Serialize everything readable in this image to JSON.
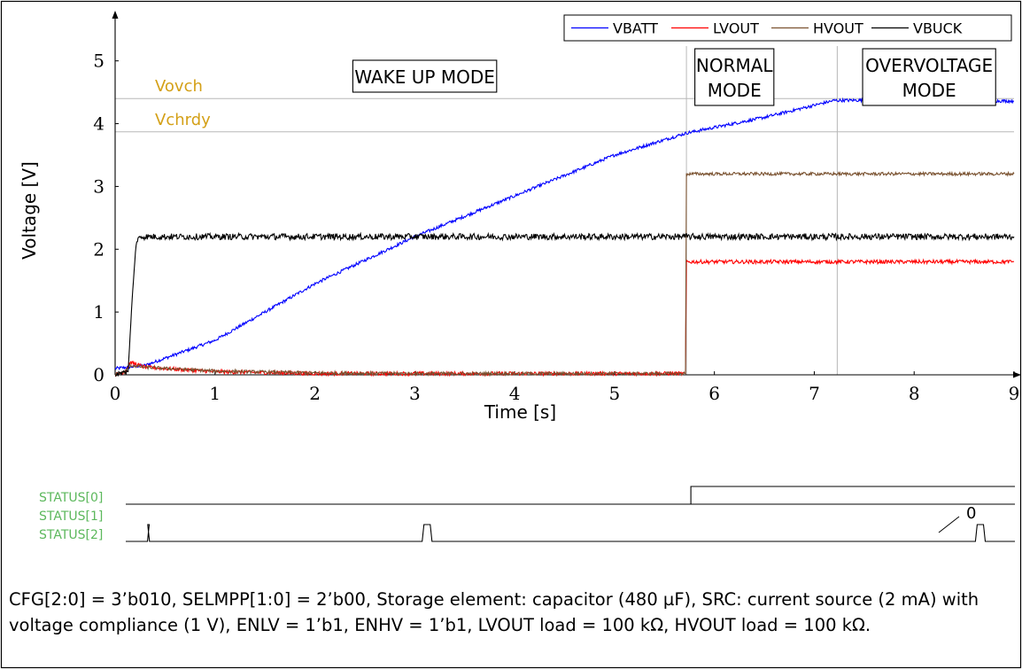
{
  "chart_data": {
    "type": "line",
    "xlabel": "Time [s]",
    "ylabel": "Voltage [V]",
    "xlim": [
      0,
      9
    ],
    "ylim": [
      0,
      5.8
    ],
    "xticks": [
      0,
      1,
      2,
      3,
      4,
      5,
      6,
      7,
      8,
      9
    ],
    "yticks": [
      0,
      1,
      2,
      3,
      4,
      5
    ],
    "grid": false,
    "legend_position": "top-right",
    "series": [
      {
        "name": "VBATT",
        "color": "#0000ff",
        "x": [
          0,
          0.3,
          1,
          2,
          3,
          4,
          5,
          5.72,
          6.5,
          7.2,
          8,
          9
        ],
        "y": [
          0.1,
          0.15,
          0.55,
          1.45,
          2.2,
          2.85,
          3.5,
          3.85,
          4.1,
          4.37,
          4.38,
          4.36
        ]
      },
      {
        "name": "LVOUT",
        "color": "#ff0000",
        "x": [
          0,
          0.1,
          0.15,
          0.3,
          1,
          2,
          3,
          5.71,
          5.72,
          6,
          7,
          8,
          9
        ],
        "y": [
          0,
          0.05,
          0.2,
          0.12,
          0.05,
          0.02,
          0.02,
          0.02,
          1.8,
          1.8,
          1.8,
          1.8,
          1.8
        ]
      },
      {
        "name": "HVOUT",
        "color": "#7a5230",
        "x": [
          0,
          0.1,
          0.15,
          0.3,
          1,
          2,
          3,
          5.71,
          5.72,
          6,
          7,
          8,
          9
        ],
        "y": [
          0,
          0.05,
          0.15,
          0.12,
          0.06,
          0.03,
          0.02,
          0.02,
          3.2,
          3.2,
          3.2,
          3.2,
          3.2
        ]
      },
      {
        "name": "VBUCK",
        "color": "#000000",
        "x": [
          0,
          0.13,
          0.17,
          0.21,
          0.25,
          1,
          2,
          3,
          4,
          5,
          6,
          7,
          8,
          9
        ],
        "y": [
          0,
          0.05,
          1.2,
          2.1,
          2.2,
          2.2,
          2.2,
          2.2,
          2.2,
          2.2,
          2.2,
          2.2,
          2.2,
          2.2
        ]
      }
    ],
    "threshold_lines": [
      {
        "label": "Vovch",
        "y": 4.4,
        "color": "#d4a017"
      },
      {
        "label": "Vchrdy",
        "y": 3.87,
        "color": "#d4a017"
      }
    ],
    "mode_boundaries": [
      5.72,
      7.23
    ],
    "mode_labels": [
      {
        "lines": [
          "WAKE UP MODE"
        ],
        "x": 3.1,
        "y": 5.0
      },
      {
        "lines": [
          "NORMAL",
          "MODE"
        ],
        "x": 6.2,
        "y": 5.0
      },
      {
        "lines": [
          "OVERVOLTAGE",
          "MODE"
        ],
        "x": 8.15,
        "y": 5.0
      }
    ],
    "digital_signals": [
      {
        "name": "STATUS[0]",
        "color": "#5cb85c",
        "segments": [
          [
            0,
            0
          ],
          [
            5.72,
            1
          ],
          [
            9,
            1
          ]
        ]
      },
      {
        "name": "STATUS[1]",
        "color": "#5cb85c",
        "segments": [
          [
            0,
            1
          ],
          [
            9,
            1
          ]
        ],
        "annotation": "0"
      },
      {
        "name": "STATUS[2]",
        "color": "#5cb85c",
        "pulses": [
          [
            0.22,
            0.24
          ],
          [
            3.0,
            3.1
          ],
          [
            8.6,
            8.7
          ]
        ]
      }
    ]
  },
  "caption": "CFG[2:0] = 3’b010, SELMPP[1:0] = 2’b00, Storage element: capacitor (480 µF), SRC: current source (2 mA) with voltage compliance (1 V), ENLV = 1’b1, ENHV = 1’b1, LVOUT load = 100 kΩ, HVOUT load = 100 kΩ."
}
